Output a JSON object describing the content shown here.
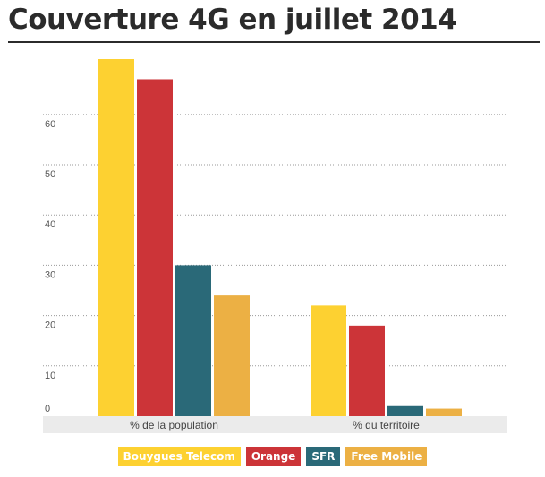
{
  "title": "Couverture 4G en juillet 2014",
  "chart_data": {
    "type": "bar",
    "title": "Couverture 4G en juillet 2014",
    "categories": [
      "% de la population",
      "% du territoire"
    ],
    "series": [
      {
        "name": "Bouygues Telecom",
        "color": "#fdd131",
        "values": [
          71,
          22
        ]
      },
      {
        "name": "Orange",
        "color": "#cc3438",
        "values": [
          67,
          18
        ]
      },
      {
        "name": "SFR",
        "color": "#2a6978",
        "values": [
          30,
          2
        ]
      },
      {
        "name": "Free Mobile",
        "color": "#ecb044",
        "values": [
          24,
          1.5
        ]
      }
    ],
    "yticks": [
      0,
      10,
      20,
      30,
      40,
      50,
      60
    ],
    "ylim": [
      0,
      71
    ],
    "xlabel": "",
    "ylabel": "",
    "grid": true,
    "legend": "bottom"
  }
}
